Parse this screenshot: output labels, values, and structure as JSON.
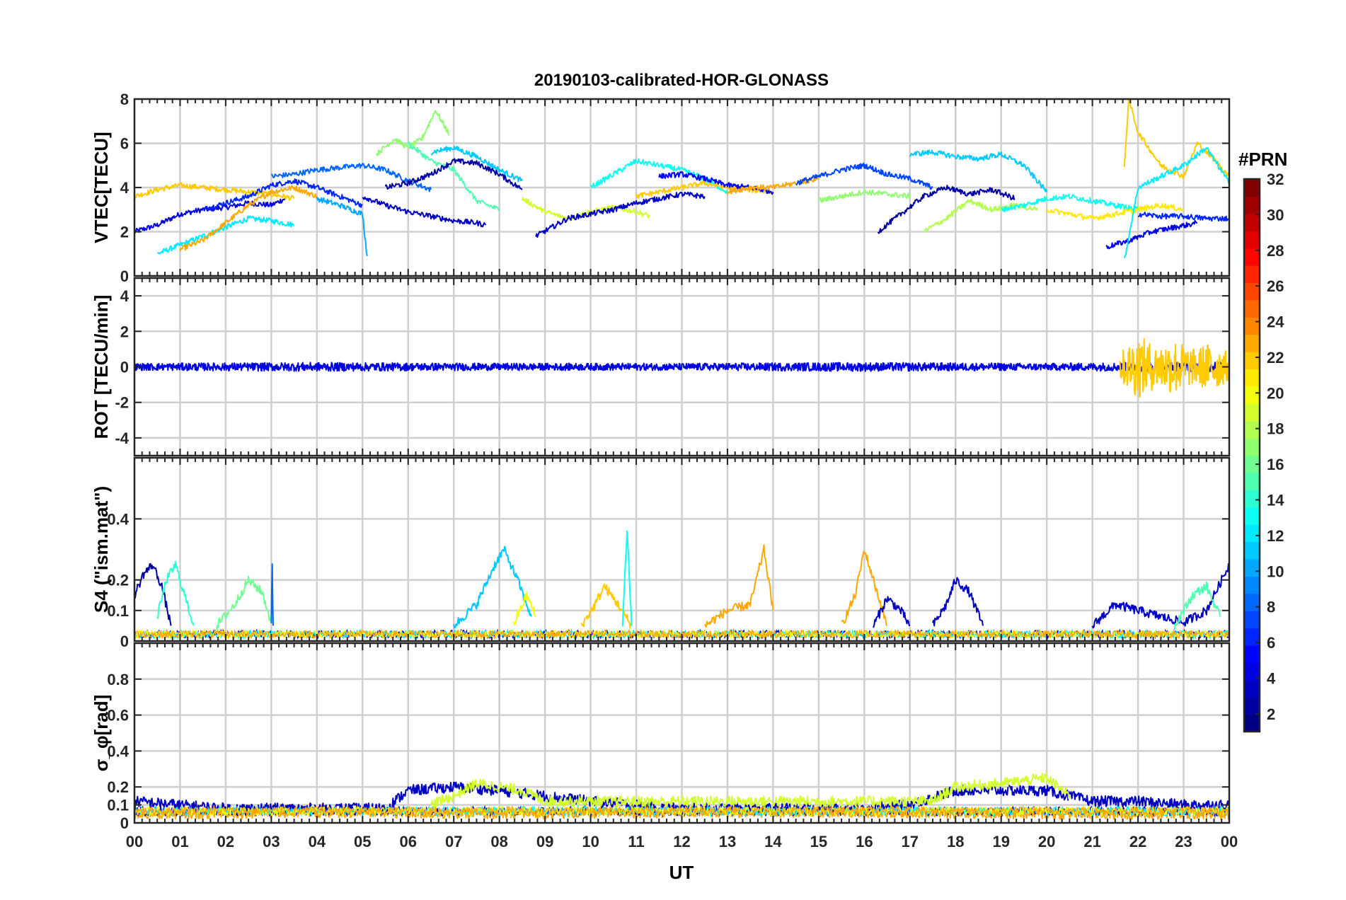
{
  "figure": {
    "title": "20190103-calibrated-HOR-GLONASS",
    "xlabel": "UT",
    "x_tick_labels": [
      "00",
      "01",
      "02",
      "03",
      "04",
      "05",
      "06",
      "07",
      "08",
      "09",
      "10",
      "11",
      "12",
      "13",
      "14",
      "15",
      "16",
      "17",
      "18",
      "19",
      "20",
      "21",
      "22",
      "23",
      "00"
    ]
  },
  "colorbar": {
    "title": "#PRN",
    "range": [
      1,
      32
    ],
    "tick_values": [
      2,
      4,
      6,
      8,
      10,
      12,
      14,
      16,
      18,
      20,
      22,
      24,
      26,
      28,
      30,
      32
    ],
    "tick_labels": [
      "2",
      "4",
      "6",
      "8",
      "10",
      "12",
      "14",
      "16",
      "18",
      "20",
      "22",
      "24",
      "26",
      "28",
      "30",
      "32"
    ],
    "colormap": "jet"
  },
  "chart_data": [
    {
      "type": "line",
      "panel": "vtec",
      "ylabel": "VTEC[TECU]",
      "xlim": [
        0,
        24
      ],
      "ylim": [
        0,
        8
      ],
      "y_ticks": [
        0,
        2,
        4,
        6,
        8
      ],
      "y_tick_labels": [
        "0",
        "2",
        "4",
        "6",
        "8"
      ],
      "grid": true,
      "x_unit": "hours UT",
      "series": [
        {
          "prn": 4,
          "x": [
            0.0,
            0.5,
            1.0,
            1.5,
            2.0,
            2.5,
            3.0,
            3.3
          ],
          "y": [
            2.0,
            2.3,
            2.8,
            3.0,
            3.1,
            3.3,
            3.2,
            3.5
          ]
        },
        {
          "prn": 12,
          "x": [
            0.5,
            1.0,
            1.5,
            2.0,
            2.5,
            3.0,
            3.5
          ],
          "y": [
            1.0,
            1.4,
            1.8,
            2.2,
            2.6,
            2.5,
            2.3
          ]
        },
        {
          "prn": 22,
          "x": [
            0.0,
            0.5,
            1.0,
            1.5,
            2.0,
            2.5,
            3.0,
            3.5
          ],
          "y": [
            3.6,
            3.9,
            4.1,
            4.0,
            3.9,
            3.8,
            3.7,
            3.5
          ]
        },
        {
          "prn": 23,
          "x": [
            1.0,
            1.5,
            2.0,
            2.5,
            3.0,
            3.5,
            4.0
          ],
          "y": [
            1.2,
            1.6,
            2.4,
            3.2,
            3.8,
            4.0,
            3.6
          ]
        },
        {
          "prn": 6,
          "x": [
            1.5,
            2.0,
            2.5,
            3.0,
            3.5,
            4.0,
            4.5,
            5.0
          ],
          "y": [
            3.0,
            3.3,
            3.6,
            4.1,
            4.3,
            4.0,
            3.6,
            3.2
          ]
        },
        {
          "prn": 8,
          "x": [
            3.0,
            3.5,
            4.0,
            4.5,
            5.0,
            5.5,
            6.0,
            6.5
          ],
          "y": [
            4.5,
            4.6,
            4.8,
            4.9,
            5.0,
            4.8,
            4.3,
            3.9
          ]
        },
        {
          "prn": 10,
          "x": [
            4.0,
            4.5,
            5.0,
            5.1
          ],
          "y": [
            3.5,
            3.2,
            2.8,
            0.9
          ]
        },
        {
          "prn": 17,
          "x": [
            5.3,
            5.7,
            6.0,
            6.3,
            6.6,
            6.9
          ],
          "y": [
            5.5,
            6.2,
            5.8,
            6.2,
            7.5,
            6.4
          ]
        },
        {
          "prn": 15,
          "x": [
            6.0,
            6.5,
            7.0,
            7.5,
            8.0
          ],
          "y": [
            6.0,
            5.2,
            4.8,
            3.4,
            3.0
          ]
        },
        {
          "prn": 11,
          "x": [
            6.5,
            7.0,
            7.5,
            8.0,
            8.5
          ],
          "y": [
            5.6,
            5.8,
            5.4,
            4.8,
            4.3
          ]
        },
        {
          "prn": 2,
          "x": [
            5.5,
            6.0,
            6.5,
            7.0,
            7.5,
            8.0,
            8.5
          ],
          "y": [
            4.0,
            4.2,
            4.6,
            5.2,
            5.1,
            4.6,
            3.9
          ]
        },
        {
          "prn": 3,
          "x": [
            5.0,
            5.5,
            6.0,
            6.5,
            7.0,
            7.5,
            7.7
          ],
          "y": [
            3.6,
            3.2,
            2.9,
            2.7,
            2.5,
            2.4,
            2.3
          ]
        },
        {
          "prn": 19,
          "x": [
            8.5,
            9.0,
            9.5,
            10.0,
            10.5,
            11.0,
            11.3
          ],
          "y": [
            3.5,
            2.9,
            2.6,
            2.9,
            3.1,
            2.9,
            2.7
          ]
        },
        {
          "prn": 3,
          "x": [
            8.8,
            9.5,
            10.0,
            10.5,
            11.0,
            11.5,
            12.0,
            12.5
          ],
          "y": [
            1.8,
            2.6,
            2.8,
            3.0,
            3.3,
            3.5,
            3.7,
            3.6
          ]
        },
        {
          "prn": 13,
          "x": [
            10.0,
            10.5,
            11.0,
            11.5,
            12.0,
            12.5,
            13.0
          ],
          "y": [
            4.0,
            4.6,
            5.2,
            5.0,
            4.8,
            4.4,
            3.8
          ]
        },
        {
          "prn": 22,
          "x": [
            11.0,
            11.5,
            12.0,
            12.5,
            13.0,
            13.5,
            14.0
          ],
          "y": [
            3.6,
            3.8,
            4.0,
            4.2,
            4.0,
            3.9,
            3.8
          ]
        },
        {
          "prn": 5,
          "x": [
            11.5,
            12.0,
            12.5,
            13.0,
            13.5,
            14.0
          ],
          "y": [
            4.5,
            4.6,
            4.4,
            4.1,
            4.0,
            3.8
          ]
        },
        {
          "prn": 23,
          "x": [
            13.0,
            13.5,
            14.0,
            14.5,
            15.0
          ],
          "y": [
            3.8,
            4.0,
            4.0,
            4.2,
            4.4
          ]
        },
        {
          "prn": 7,
          "x": [
            14.5,
            15.0,
            15.5,
            16.0,
            16.5,
            17.0,
            17.5
          ],
          "y": [
            4.2,
            4.5,
            4.8,
            5.0,
            4.6,
            4.4,
            4.0
          ]
        },
        {
          "prn": 17,
          "x": [
            15.0,
            15.5,
            16.0,
            16.5,
            17.0
          ],
          "y": [
            3.4,
            3.6,
            3.8,
            3.7,
            3.6
          ]
        },
        {
          "prn": 11,
          "x": [
            17.0,
            17.5,
            18.0,
            18.5,
            19.0,
            19.5,
            20.0
          ],
          "y": [
            5.5,
            5.6,
            5.4,
            5.3,
            5.5,
            5.0,
            3.8
          ]
        },
        {
          "prn": 2,
          "x": [
            16.3,
            16.8,
            17.3,
            17.8,
            18.3,
            18.8,
            19.3
          ],
          "y": [
            2.0,
            2.8,
            3.6,
            4.0,
            3.7,
            3.9,
            3.5
          ]
        },
        {
          "prn": 18,
          "x": [
            17.3,
            17.8,
            18.3,
            18.8,
            19.3,
            19.8
          ],
          "y": [
            2.0,
            2.6,
            3.4,
            3.0,
            3.2,
            3.0
          ]
        },
        {
          "prn": 13,
          "x": [
            19.0,
            19.5,
            20.0,
            20.5,
            21.0,
            21.5,
            22.0
          ],
          "y": [
            3.0,
            3.2,
            3.5,
            3.6,
            3.4,
            3.2,
            3.0
          ]
        },
        {
          "prn": 21,
          "x": [
            20.0,
            20.5,
            21.0,
            21.5,
            22.0,
            22.5,
            23.0
          ],
          "y": [
            3.0,
            2.8,
            2.6,
            2.8,
            3.0,
            3.2,
            3.0
          ]
        },
        {
          "prn": 4,
          "x": [
            21.3,
            21.8,
            22.3,
            22.8,
            23.3
          ],
          "y": [
            1.3,
            1.6,
            2.0,
            2.2,
            2.4
          ]
        },
        {
          "prn": 22,
          "x": [
            21.7,
            21.8,
            22.0,
            22.5,
            23.0,
            23.3,
            23.7,
            24.0
          ],
          "y": [
            5.0,
            8.0,
            6.5,
            5.0,
            4.5,
            6.0,
            5.2,
            4.5
          ]
        },
        {
          "prn": 12,
          "x": [
            21.7,
            22.0,
            22.5,
            23.0,
            23.5,
            24.0
          ],
          "y": [
            0.7,
            4.0,
            4.5,
            5.0,
            5.8,
            4.2
          ]
        },
        {
          "prn": 6,
          "x": [
            22.0,
            22.5,
            23.0,
            23.5,
            24.0
          ],
          "y": [
            2.8,
            2.7,
            2.7,
            2.6,
            2.6
          ]
        }
      ]
    },
    {
      "type": "line",
      "panel": "rot",
      "ylabel": "ROT [TECU/min]",
      "xlim": [
        0,
        24
      ],
      "ylim": [
        -5,
        5
      ],
      "y_ticks": [
        -4,
        -2,
        0,
        2,
        4
      ],
      "y_tick_labels": [
        "-4",
        "-2",
        "0",
        "2",
        "4"
      ],
      "grid": true,
      "series": [
        {
          "prn": 4,
          "x": [
            0,
            4,
            8,
            12,
            16,
            20,
            24
          ],
          "y_mean": [
            0,
            0,
            0,
            0,
            0,
            0,
            0
          ],
          "y_spread": [
            0.2,
            0.25,
            0.2,
            0.2,
            0.25,
            0.2,
            0.3
          ]
        },
        {
          "prn": 22,
          "x": [
            21.6,
            22.0,
            22.4,
            22.8,
            23.2,
            23.6,
            24.0
          ],
          "y_mean": [
            0,
            0,
            0,
            0,
            0,
            0,
            0
          ],
          "y_spread": [
            0.8,
            1.8,
            1.2,
            1.6,
            1.0,
            1.4,
            0.8
          ]
        }
      ]
    },
    {
      "type": "line",
      "panel": "s4",
      "ylabel": "S4 (\"ism.mat\")",
      "xlim": [
        0,
        24
      ],
      "ylim": [
        0,
        0.6
      ],
      "y_ticks": [
        0,
        0.1,
        0.2,
        0.4
      ],
      "y_tick_labels": [
        "0",
        "0.1",
        "0.2",
        "0.4"
      ],
      "grid": true,
      "series": [
        {
          "prn": 2,
          "x": [
            0.0,
            0.2,
            0.4,
            0.6,
            0.8
          ],
          "y": [
            0.15,
            0.22,
            0.25,
            0.18,
            0.05
          ]
        },
        {
          "prn": 14,
          "x": [
            0.5,
            0.7,
            0.9,
            1.1,
            1.3
          ],
          "y": [
            0.08,
            0.2,
            0.25,
            0.15,
            0.05
          ]
        },
        {
          "prn": 16,
          "x": [
            1.8,
            2.2,
            2.5,
            2.8,
            3.0
          ],
          "y": [
            0.05,
            0.12,
            0.2,
            0.16,
            0.06
          ]
        },
        {
          "prn": 8,
          "x": [
            3.0,
            3.02,
            3.04
          ],
          "y": [
            0.05,
            0.25,
            0.05
          ]
        },
        {
          "prn": 11,
          "x": [
            7.0,
            7.5,
            7.9,
            8.1,
            8.4,
            8.7
          ],
          "y": [
            0.05,
            0.12,
            0.25,
            0.3,
            0.2,
            0.08
          ]
        },
        {
          "prn": 20,
          "x": [
            8.3,
            8.6,
            8.8
          ],
          "y": [
            0.05,
            0.15,
            0.08
          ]
        },
        {
          "prn": 22,
          "x": [
            9.8,
            10.1,
            10.3,
            10.6,
            10.9
          ],
          "y": [
            0.05,
            0.12,
            0.18,
            0.12,
            0.05
          ]
        },
        {
          "prn": 13,
          "x": [
            10.7,
            10.8,
            10.9
          ],
          "y": [
            0.05,
            0.37,
            0.05
          ]
        },
        {
          "prn": 23,
          "x": [
            12.5,
            13.0,
            13.5,
            13.8,
            14.0
          ],
          "y": [
            0.05,
            0.1,
            0.12,
            0.3,
            0.1
          ]
        },
        {
          "prn": 23,
          "x": [
            15.5,
            15.8,
            16.0,
            16.2,
            16.5
          ],
          "y": [
            0.05,
            0.15,
            0.3,
            0.2,
            0.05
          ]
        },
        {
          "prn": 3,
          "x": [
            16.2,
            16.5,
            16.8,
            17.0
          ],
          "y": [
            0.05,
            0.14,
            0.1,
            0.05
          ]
        },
        {
          "prn": 3,
          "x": [
            17.5,
            17.8,
            18.0,
            18.3,
            18.6
          ],
          "y": [
            0.05,
            0.12,
            0.2,
            0.16,
            0.05
          ]
        },
        {
          "prn": 3,
          "x": [
            21.0,
            21.5,
            22.0,
            22.5,
            23.0,
            23.5,
            24.0
          ],
          "y": [
            0.05,
            0.12,
            0.1,
            0.08,
            0.06,
            0.1,
            0.25
          ]
        },
        {
          "prn": 15,
          "x": [
            22.8,
            23.2,
            23.5,
            23.8
          ],
          "y": [
            0.05,
            0.15,
            0.18,
            0.08
          ]
        }
      ]
    },
    {
      "type": "line",
      "panel": "sigma_phi",
      "ylabel": "σ_φ[rad]",
      "xlim": [
        0,
        24
      ],
      "ylim": [
        0,
        1.0
      ],
      "y_ticks": [
        0,
        0.1,
        0.2,
        0.4,
        0.6,
        0.8
      ],
      "y_tick_labels": [
        "0",
        "0.1",
        "0.2",
        "0.4",
        "0.6",
        "0.8"
      ],
      "grid": true,
      "series": [
        {
          "prn": 3,
          "x": [
            0,
            2,
            4,
            5.5,
            6,
            7,
            8,
            9,
            10,
            11,
            12,
            14,
            16,
            17,
            18,
            19,
            20,
            21,
            22,
            23,
            24
          ],
          "y": [
            0.12,
            0.08,
            0.08,
            0.08,
            0.18,
            0.2,
            0.18,
            0.15,
            0.12,
            0.1,
            0.08,
            0.08,
            0.08,
            0.1,
            0.18,
            0.18,
            0.18,
            0.12,
            0.12,
            0.1,
            0.1
          ]
        },
        {
          "prn": 19,
          "x": [
            6.5,
            7,
            7.5,
            8,
            8.5,
            9,
            17.5,
            18,
            19,
            20,
            20.5
          ],
          "y": [
            0.1,
            0.15,
            0.22,
            0.2,
            0.18,
            0.12,
            0.12,
            0.2,
            0.22,
            0.25,
            0.15
          ]
        },
        {
          "prn": 23,
          "x": [
            0,
            4,
            8,
            12,
            16,
            20,
            24
          ],
          "y": [
            0.05,
            0.06,
            0.05,
            0.06,
            0.06,
            0.05,
            0.05
          ]
        }
      ]
    }
  ]
}
